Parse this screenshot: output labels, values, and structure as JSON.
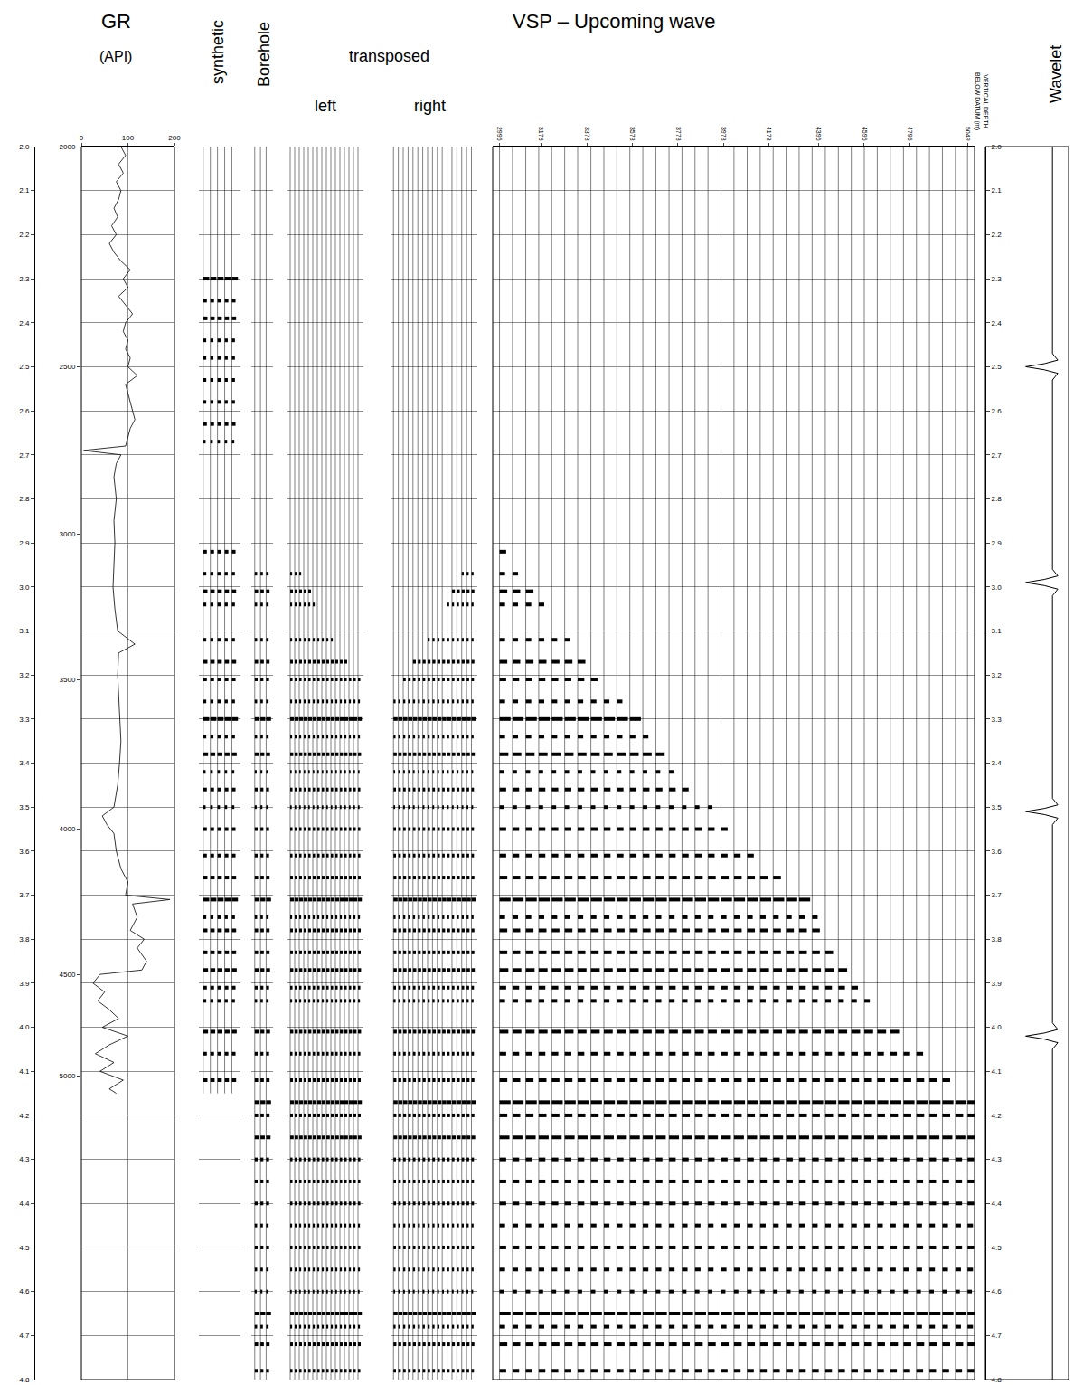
{
  "chart_data": {
    "type": "seismic_display",
    "title": "VSP – Upcoming wave",
    "grid": true,
    "time_axis": {
      "ylim": [
        2.0,
        4.8
      ],
      "yticks": [
        {
          "value": 2,
          "label": "2.0"
        },
        2.1,
        2.2,
        2.3,
        2.4,
        2.5,
        2.6,
        2.7,
        2.8,
        2.9,
        {
          "value": 3,
          "label": "3.0"
        },
        3.1,
        3.2,
        3.3,
        3.4,
        3.5,
        3.6,
        3.7,
        3.8,
        3.9,
        {
          "value": 4,
          "label": "4.0"
        },
        4.1,
        4.2,
        4.3,
        4.4,
        4.5,
        4.6,
        4.7,
        4.8
      ]
    },
    "gr": {
      "title": "GR",
      "subtitle": "(API)",
      "type": "line",
      "color": "#000000",
      "xlim": [
        0,
        200
      ],
      "xticks": [
        0,
        100,
        200
      ],
      "depth_ticks": [
        {
          "value": 2.0,
          "label": "2000"
        },
        {
          "value": 2.5,
          "label": "2500"
        },
        {
          "value": 2.88,
          "label": "3000"
        },
        {
          "value": 3.21,
          "label": "3500"
        },
        {
          "value": 3.55,
          "label": "4000"
        },
        {
          "value": 3.88,
          "label": "4500"
        },
        {
          "value": 4.11,
          "label": "5000"
        }
      ],
      "time": [
        2.0,
        2.02,
        2.04,
        2.06,
        2.08,
        2.1,
        2.12,
        2.14,
        2.16,
        2.18,
        2.2,
        2.22,
        2.24,
        2.26,
        2.28,
        2.3,
        2.32,
        2.34,
        2.36,
        2.38,
        2.4,
        2.42,
        2.44,
        2.46,
        2.48,
        2.5,
        2.52,
        2.54,
        2.56,
        2.58,
        2.6,
        2.62,
        2.64,
        2.66,
        2.68,
        2.69,
        2.7,
        2.72,
        2.75,
        2.8,
        2.85,
        2.9,
        2.95,
        3.0,
        3.05,
        3.1,
        3.13,
        3.15,
        3.2,
        3.25,
        3.3,
        3.35,
        3.4,
        3.45,
        3.5,
        3.52,
        3.54,
        3.56,
        3.6,
        3.64,
        3.67,
        3.7,
        3.71,
        3.72,
        3.75,
        3.78,
        3.8,
        3.82,
        3.85,
        3.87,
        3.88,
        3.9,
        3.92,
        3.94,
        3.96,
        3.98,
        4.0,
        4.02,
        4.04,
        4.06,
        4.08,
        4.1,
        4.12,
        4.14,
        4.15
      ],
      "values": [
        85,
        95,
        80,
        90,
        75,
        85,
        80,
        70,
        78,
        65,
        75,
        60,
        70,
        85,
        105,
        90,
        100,
        80,
        95,
        110,
        95,
        90,
        100,
        95,
        105,
        100,
        120,
        95,
        100,
        105,
        110,
        115,
        105,
        100,
        95,
        5,
        85,
        75,
        70,
        75,
        70,
        72,
        70,
        68,
        72,
        78,
        115,
        80,
        78,
        80,
        82,
        85,
        82,
        78,
        70,
        45,
        55,
        70,
        75,
        85,
        100,
        95,
        190,
        110,
        120,
        105,
        135,
        120,
        140,
        130,
        40,
        25,
        50,
        35,
        60,
        80,
        45,
        100,
        60,
        30,
        70,
        40,
        90,
        60,
        75
      ]
    },
    "reflections": {
      "time": [
        2.3,
        2.35,
        2.39,
        2.44,
        2.48,
        2.53,
        2.58,
        2.63,
        2.67,
        2.92,
        2.97,
        3.01,
        3.04,
        3.12,
        3.17,
        3.21,
        3.26,
        3.3,
        3.34,
        3.38,
        3.42,
        3.46,
        3.5,
        3.55,
        3.61,
        3.66,
        3.71,
        3.75,
        3.78,
        3.83,
        3.87,
        3.91,
        3.94,
        4.01,
        4.06,
        4.12,
        4.17,
        4.2,
        4.25,
        4.3,
        4.35,
        4.4,
        4.45,
        4.5,
        4.55,
        4.6,
        4.65,
        4.68,
        4.72,
        4.78
      ],
      "amplitude": [
        1.0,
        0.6,
        0.7,
        0.5,
        0.5,
        0.5,
        0.5,
        0.6,
        0.4,
        0.6,
        0.5,
        0.7,
        0.5,
        0.5,
        0.7,
        0.6,
        0.5,
        1.0,
        0.5,
        0.8,
        0.4,
        0.6,
        0.4,
        0.6,
        0.6,
        0.7,
        1.0,
        0.5,
        0.7,
        0.7,
        0.8,
        0.6,
        0.5,
        0.8,
        0.6,
        0.7,
        1.0,
        0.7,
        0.9,
        0.6,
        0.6,
        0.6,
        0.5,
        0.6,
        0.5,
        0.4,
        1.0,
        0.5,
        0.7,
        0.6
      ]
    },
    "synthetic": {
      "title": "synthetic",
      "type": "wiggle",
      "color": "#000000",
      "tick_labels": false,
      "start": [
        2.28,
        2.28,
        2.28,
        2.28,
        2.28
      ],
      "end": 4.15
    },
    "borehole": {
      "title": "Borehole",
      "type": "wiggle",
      "color": "#000000",
      "tick_labels": false,
      "start": [
        2.97,
        2.97,
        2.97
      ],
      "end": 4.8
    },
    "transposed": {
      "title": "transposed",
      "left": {
        "title": "left",
        "type": "wiggle",
        "color": "#000000",
        "tick_labels": false,
        "start": [
          2.93,
          2.95,
          2.97,
          2.99,
          3.01,
          3.03,
          3.05,
          3.07,
          3.09,
          3.11,
          3.13,
          3.15,
          3.17,
          3.19,
          3.2,
          3.21
        ],
        "end": 4.8
      },
      "right": {
        "title": "right",
        "type": "wiggle",
        "color": "#000000",
        "tick_labels": false,
        "start": [
          3.25,
          3.23,
          3.21,
          3.19,
          3.17,
          3.15,
          3.13,
          3.11,
          3.09,
          3.07,
          3.05,
          3.03,
          3.01,
          2.99,
          2.97,
          2.95,
          2.93
        ],
        "end": 4.8
      }
    },
    "vsp": {
      "type": "wiggle",
      "color": "#000000",
      "xlabel": "VERTICAL DEPTH BELOW DATUM (m)",
      "xlim": [
        2965,
        5080
      ],
      "xticks": [
        2995,
        3178,
        3378,
        3578,
        3778,
        3978,
        4178,
        4395,
        4595,
        4795,
        5049
      ],
      "depth": [
        2995,
        3052,
        3110,
        3167,
        3224,
        3281,
        3338,
        3396,
        3453,
        3510,
        3567,
        3624,
        3681,
        3739,
        3796,
        3853,
        3910,
        3967,
        4024,
        4082,
        4139,
        4196,
        4253,
        4310,
        4367,
        4425,
        4482,
        4539,
        4596,
        4653,
        4710,
        4768,
        4825,
        4882,
        4939,
        4996,
        5049
      ],
      "start": [
        2.9,
        2.94,
        2.98,
        3.02,
        3.06,
        3.1,
        3.14,
        3.18,
        3.22,
        3.26,
        3.3,
        3.34,
        3.37,
        3.4,
        3.43,
        3.47,
        3.5,
        3.53,
        3.56,
        3.59,
        3.62,
        3.65,
        3.68,
        3.71,
        3.74,
        3.79,
        3.84,
        3.88,
        3.92,
        3.95,
        3.98,
        4.02,
        4.05,
        4.08,
        4.11,
        4.13,
        4.15
      ],
      "end": 4.8
    },
    "wavelet": {
      "title": "Wavelet",
      "type": "line",
      "color": "#000000",
      "time": [
        2.0,
        2.47,
        2.485,
        2.493,
        2.5,
        2.507,
        2.515,
        2.53,
        2.96,
        2.975,
        2.983,
        2.99,
        2.997,
        3.005,
        3.02,
        3.48,
        3.495,
        3.503,
        3.51,
        3.517,
        3.525,
        3.54,
        3.99,
        4.005,
        4.013,
        4.02,
        4.027,
        4.035,
        4.05,
        4.8
      ],
      "amplitude": [
        0,
        0,
        0.2,
        -0.3,
        -1,
        -0.3,
        0.2,
        0,
        0,
        0.2,
        -0.3,
        -1,
        -0.3,
        0.2,
        0,
        0,
        0.2,
        -0.3,
        -1,
        -0.3,
        0.2,
        0,
        0,
        0.2,
        -0.3,
        -1,
        -0.3,
        0.2,
        0,
        0
      ]
    }
  }
}
